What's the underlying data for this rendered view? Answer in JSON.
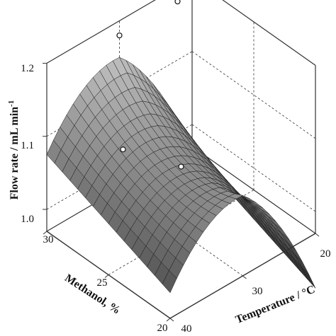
{
  "chart_data": {
    "type": "surface3d",
    "title": "",
    "zlabel_main": "Flow rate / mL min",
    "zlabel_sup": "-1",
    "xlabel": "Methanol, %",
    "ylabel": "Temperature / °C",
    "x_ticks": [
      "30",
      "25",
      "20"
    ],
    "y_ticks": [
      "20",
      "30",
      "40"
    ],
    "z_ticks": [
      "1.0",
      "1.1",
      "1.2"
    ],
    "methanol_range": [
      20,
      30
    ],
    "temperature_range": [
      20,
      40
    ],
    "flow_range": [
      0.97,
      1.2
    ],
    "grid": true,
    "surface_grid": {
      "methanol": [
        20,
        30
      ],
      "temperature": [
        20,
        40
      ],
      "description": "Saddle-shaped response surface: flow rate rises toward middle temperatures, dips at ends"
    },
    "sample_points": [
      {
        "methanol": 30,
        "temperature": 30,
        "flow_rate": 1.18
      },
      {
        "methanol": 30,
        "temperature": 22,
        "flow_rate": 1.18
      },
      {
        "methanol": 30,
        "temperature": 20,
        "flow_rate": 1.19
      },
      {
        "methanol": 25,
        "temperature": 30,
        "flow_rate": 1.06
      },
      {
        "methanol": 25,
        "temperature": 38,
        "flow_rate": 1.13
      }
    ]
  }
}
